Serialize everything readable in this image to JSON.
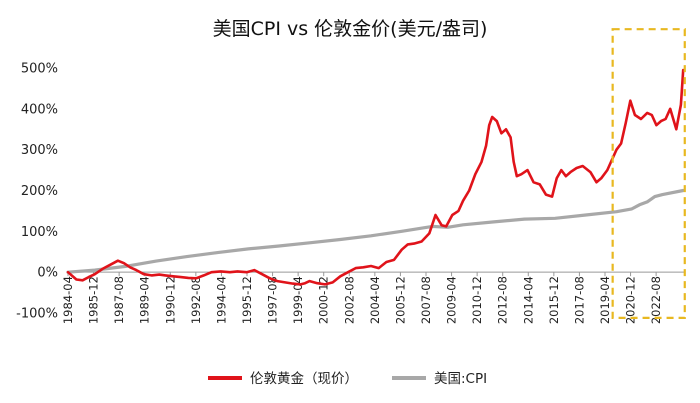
{
  "chart_data": {
    "type": "line",
    "title": "美国CPI vs 伦敦金价(美元/盎司)",
    "xlabel": "",
    "ylabel": "",
    "ylim": [
      -100,
      500
    ],
    "yticks": [
      -100,
      0,
      100,
      200,
      300,
      400,
      500
    ],
    "ytick_labels": [
      "-100%",
      "0%",
      "100%",
      "200%",
      "300%",
      "400%",
      "500%"
    ],
    "x_tick_labels": [
      "1984-04",
      "1985-12",
      "1987-08",
      "1989-04",
      "1990-12",
      "1992-08",
      "1994-04",
      "1995-12",
      "1997-08",
      "1999-04",
      "2000-12",
      "2002-08",
      "2004-04",
      "2005-12",
      "2007-08",
      "2009-04",
      "2010-12",
      "2012-08",
      "2014-04",
      "2015-12",
      "2017-08",
      "2019-04",
      "2020-12",
      "2022-08"
    ],
    "x_range": [
      1984.25,
      2024.4
    ],
    "grid": false,
    "legend_position": "bottom",
    "highlight_box": {
      "x_range": [
        2019.75,
        2024.45
      ],
      "y_range": [
        -112,
        595
      ],
      "color": "#e8b820"
    },
    "series": [
      {
        "name": "伦敦黄金（现价）",
        "color": "#e0131a",
        "x": [
          1984.25,
          1984.8,
          1985.2,
          1985.6,
          1986.0,
          1986.5,
          1987.0,
          1987.5,
          1987.9,
          1988.3,
          1988.7,
          1989.2,
          1989.7,
          1990.2,
          1990.6,
          1991.1,
          1991.6,
          1992.1,
          1992.6,
          1993.1,
          1993.6,
          1994.2,
          1994.8,
          1995.3,
          1995.9,
          1996.4,
          1996.9,
          1997.4,
          1997.9,
          1998.4,
          1998.9,
          1999.4,
          1999.7,
          2000.0,
          2000.5,
          2001.0,
          2001.5,
          2002.0,
          2002.5,
          2003.0,
          2003.5,
          2004.0,
          2004.5,
          2005.0,
          2005.5,
          2006.0,
          2006.4,
          2006.8,
          2007.3,
          2007.8,
          2008.2,
          2008.6,
          2008.9,
          2009.3,
          2009.7,
          2010.0,
          2010.4,
          2010.8,
          2011.2,
          2011.5,
          2011.7,
          2011.9,
          2012.2,
          2012.5,
          2012.8,
          2013.1,
          2013.3,
          2013.5,
          2013.8,
          2014.2,
          2014.6,
          2015.0,
          2015.4,
          2015.8,
          2016.1,
          2016.4,
          2016.7,
          2017.0,
          2017.4,
          2017.8,
          2018.3,
          2018.7,
          2019.0,
          2019.4,
          2019.7,
          2020.0,
          2020.3,
          2020.6,
          2020.9,
          2021.2,
          2021.6,
          2022.0,
          2022.3,
          2022.6,
          2022.9,
          2023.2,
          2023.5,
          2023.9,
          2024.2,
          2024.35
        ],
        "values": [
          0,
          -18,
          -20,
          -12,
          -5,
          8,
          18,
          28,
          22,
          12,
          5,
          -5,
          -8,
          -6,
          -8,
          -10,
          -12,
          -14,
          -15,
          -8,
          0,
          2,
          0,
          2,
          0,
          5,
          -5,
          -15,
          -22,
          -25,
          -28,
          -30,
          -27,
          -22,
          -27,
          -30,
          -25,
          -10,
          0,
          10,
          12,
          15,
          10,
          25,
          30,
          55,
          68,
          70,
          75,
          95,
          140,
          115,
          112,
          140,
          150,
          175,
          200,
          240,
          270,
          310,
          360,
          380,
          370,
          340,
          350,
          330,
          270,
          235,
          240,
          250,
          220,
          215,
          190,
          185,
          230,
          250,
          235,
          245,
          255,
          260,
          245,
          220,
          230,
          250,
          275,
          300,
          315,
          365,
          420,
          385,
          375,
          390,
          385,
          360,
          370,
          375,
          400,
          350,
          410,
          495
        ]
      },
      {
        "name": "美国:CPI",
        "color": "#a8a8a8",
        "x": [
          1984.25,
          1986.0,
          1988.0,
          1990.0,
          1992.0,
          1994.0,
          1996.0,
          1998.0,
          2000.0,
          2002.0,
          2004.0,
          2006.0,
          2008.0,
          2009.0,
          2010.0,
          2012.0,
          2014.0,
          2016.0,
          2018.0,
          2020.0,
          2021.0,
          2021.5,
          2022.0,
          2022.5,
          2023.0,
          2024.35
        ],
        "values": [
          0,
          5,
          14,
          27,
          38,
          48,
          57,
          64,
          72,
          80,
          89,
          100,
          112,
          110,
          116,
          123,
          130,
          132,
          140,
          148,
          155,
          165,
          172,
          185,
          190,
          200
        ]
      }
    ]
  }
}
